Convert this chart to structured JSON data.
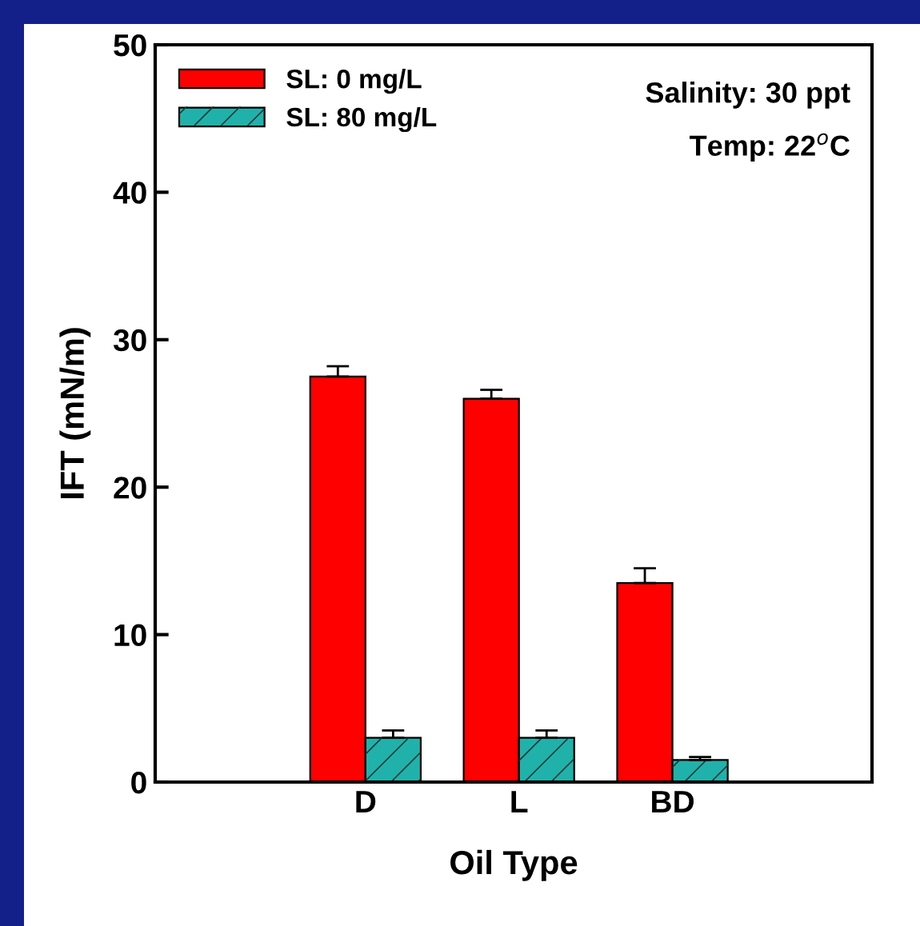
{
  "chart_data": {
    "type": "bar",
    "xlabel": "Oil Type",
    "ylabel": "IFT (mN/m)",
    "categories": [
      "D",
      "L",
      "BD"
    ],
    "series": [
      {
        "name": "SL: 0 mg/L",
        "color": "#ff0000",
        "values": [
          27.5,
          26.0,
          13.5
        ],
        "errors": [
          0.7,
          0.6,
          1.0
        ]
      },
      {
        "name": "SL: 80 mg/L",
        "color": "#20b2aa",
        "values": [
          3.0,
          3.0,
          1.5
        ],
        "errors": [
          0.5,
          0.5,
          0.2
        ]
      }
    ],
    "ylim": [
      0,
      50
    ],
    "yticks": [
      0,
      10,
      20,
      30,
      40,
      50
    ],
    "grid": false,
    "legend": "top left",
    "annotations": [
      "Salinity: 30 ppt",
      "Temp: 22$^{o}$C"
    ]
  }
}
